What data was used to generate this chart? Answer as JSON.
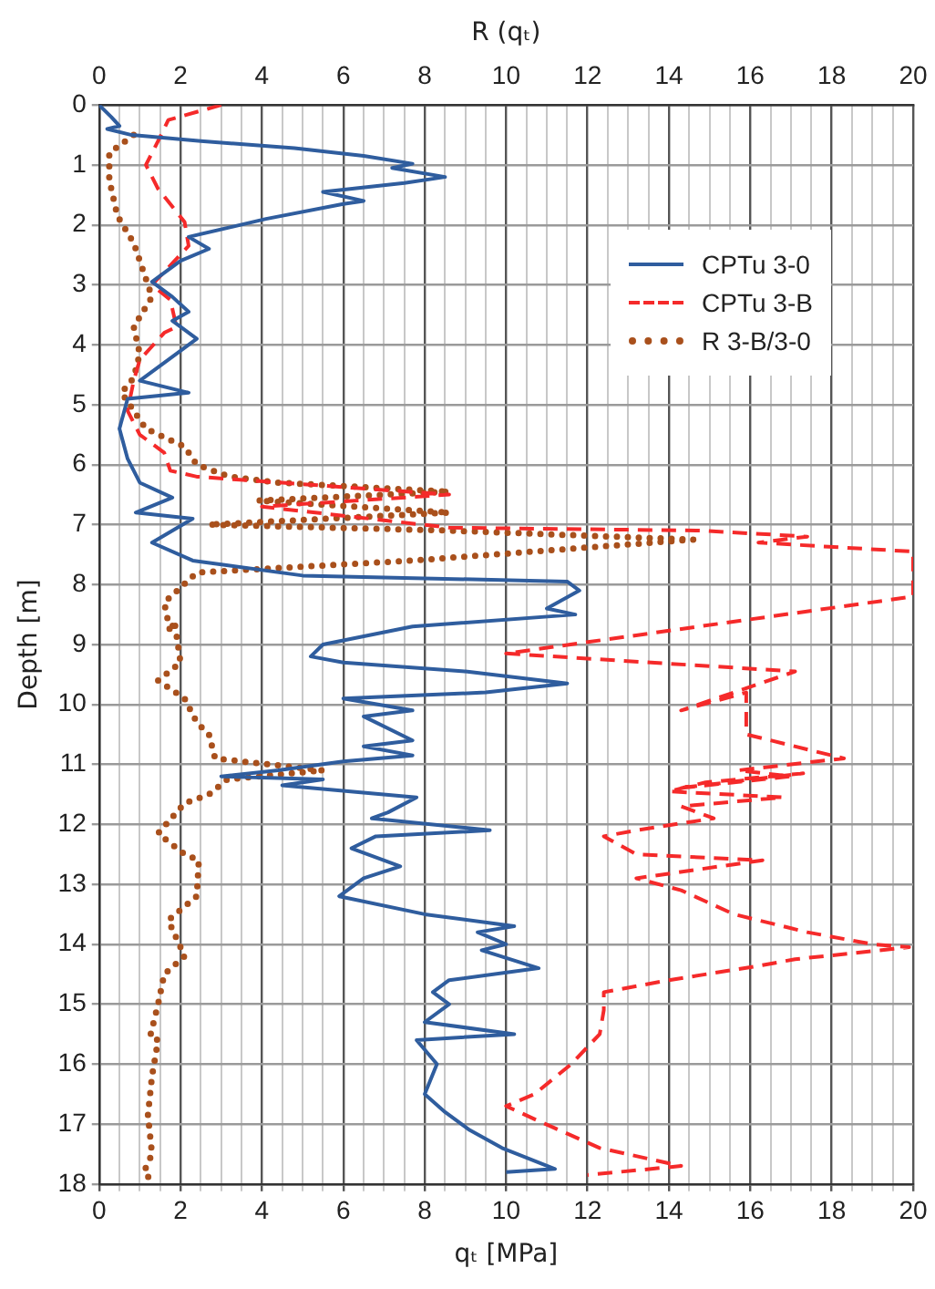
{
  "chart_data": {
    "type": "line",
    "xlabel": "qₜ [MPa]",
    "x2label": "R (qₜ)",
    "ylabel": "Depth [m]",
    "xlim": [
      0,
      20
    ],
    "xticks": [
      0,
      {
        "value": 0.5,
        "label": null
      },
      {
        "value": 1,
        "label": null
      },
      {
        "value": 1.5,
        "label": null
      },
      2,
      {
        "value": 2.5,
        "label": null
      },
      {
        "value": 3,
        "label": null
      },
      {
        "value": 3.5,
        "label": null
      },
      4,
      {
        "value": 4.5,
        "label": null
      },
      {
        "value": 5,
        "label": null
      },
      {
        "value": 5.5,
        "label": null
      },
      6,
      {
        "value": 6.5,
        "label": null
      },
      {
        "value": 7,
        "label": null
      },
      {
        "value": 7.5,
        "label": null
      },
      8,
      {
        "value": 8.5,
        "label": null
      },
      {
        "value": 9,
        "label": null
      },
      {
        "value": 9.5,
        "label": null
      },
      10,
      {
        "value": 10.5,
        "label": null
      },
      {
        "value": 11,
        "label": null
      },
      {
        "value": 11.5,
        "label": null
      },
      12,
      {
        "value": 12.5,
        "label": null
      },
      {
        "value": 13,
        "label": null
      },
      {
        "value": 13.5,
        "label": null
      },
      14,
      {
        "value": 14.5,
        "label": null
      },
      {
        "value": 15,
        "label": null
      },
      {
        "value": 15.5,
        "label": null
      },
      16,
      {
        "value": 16.5,
        "label": null
      },
      {
        "value": 17,
        "label": null
      },
      {
        "value": 17.5,
        "label": null
      },
      18,
      {
        "value": 18.5,
        "label": null
      },
      {
        "value": 19,
        "label": null
      },
      {
        "value": 19.5,
        "label": null
      },
      20
    ],
    "x2lim": [
      0,
      20
    ],
    "x2ticks": [
      0,
      2,
      4,
      6,
      8,
      10,
      12,
      14,
      16,
      18,
      20
    ],
    "ylim": [
      18,
      0
    ],
    "yticks": [
      0,
      1,
      2,
      3,
      4,
      5,
      6,
      7,
      8,
      9,
      10,
      11,
      12,
      13,
      14,
      15,
      16,
      17,
      18
    ],
    "grid": true,
    "legend": "top right",
    "series": [
      {
        "name": "CPTu 3-0",
        "color": "#2f5d9e",
        "line_style": "solid",
        "x": [
          0,
          0.3,
          0.5,
          0.2,
          0.8,
          2.5,
          4.8,
          6.5,
          7.7,
          7.2,
          8.5,
          7.5,
          5.5,
          6.5,
          6.0,
          4.1,
          2.2,
          2.7,
          2.0,
          1.3,
          1.8,
          2.2,
          1.8,
          2.4,
          1.8,
          1.0,
          2.2,
          0.7,
          0.5,
          0.7,
          1.0,
          1.8,
          0.9,
          2.3,
          1.3,
          2.3,
          5.0,
          11.5,
          11.8,
          11.0,
          11.7,
          7.7,
          5.5,
          5.2,
          6.0,
          9.0,
          11.5,
          9.5,
          6.0,
          7.7,
          6.5,
          7.7,
          6.5,
          7.7,
          6.0,
          4.4,
          3.0,
          5.5,
          4.5,
          7.8,
          7.1,
          6.7,
          9.6,
          6.8,
          6.2,
          7.4,
          6.5,
          5.9,
          8.0,
          10.2,
          9.3,
          10.0,
          9.4,
          10.8,
          8.6,
          8.2,
          8.6,
          8.0,
          10.2,
          7.8,
          8.3,
          8.0,
          8.5,
          9.1,
          9.9,
          11.2,
          10.0
        ],
        "values": [
          0,
          0.2,
          0.35,
          0.4,
          0.5,
          0.6,
          0.72,
          0.85,
          0.98,
          1.05,
          1.2,
          1.3,
          1.45,
          1.6,
          1.65,
          1.9,
          2.2,
          2.4,
          2.6,
          2.95,
          3.2,
          3.45,
          3.6,
          3.9,
          4.2,
          4.6,
          4.8,
          4.9,
          5.4,
          5.9,
          6.3,
          6.55,
          6.8,
          6.9,
          7.3,
          7.6,
          7.85,
          7.95,
          8.1,
          8.4,
          8.5,
          8.7,
          9.0,
          9.2,
          9.3,
          9.45,
          9.65,
          9.8,
          9.9,
          10.1,
          10.2,
          10.6,
          10.7,
          10.85,
          10.95,
          11.1,
          11.2,
          11.25,
          11.35,
          11.55,
          11.8,
          11.9,
          12.1,
          12.2,
          12.4,
          12.7,
          12.9,
          13.2,
          13.5,
          13.7,
          13.8,
          14.0,
          14.1,
          14.4,
          14.6,
          14.8,
          15.0,
          15.3,
          15.5,
          15.6,
          16.0,
          16.5,
          16.8,
          17.1,
          17.4,
          17.75,
          17.8
        ]
      },
      {
        "name": "CPTu 3-B",
        "color": "#f52a2a",
        "line_style": "dashed",
        "x": [
          3.0,
          1.7,
          1.45,
          1.15,
          1.45,
          2.1,
          2.2,
          1.3,
          1.75,
          1.9,
          1.6,
          1.0,
          0.85,
          0.7,
          1.0,
          1.6,
          1.75,
          2.4,
          8.6,
          4.0,
          8.6,
          14.8,
          17.4,
          16.2,
          20,
          20,
          20,
          10.0,
          17.1,
          14.3,
          15.9,
          15.9,
          18.3,
          15.7,
          17.0,
          14.2,
          17.3,
          14.9,
          14.0,
          16.8,
          14.3,
          15.1,
          13.2,
          12.4,
          13.2,
          16.3,
          13.2,
          14.3,
          15.6,
          17.4,
          19.0,
          19.9,
          17.1,
          16.3,
          14.0,
          12.4,
          12.4,
          12.3,
          11.6,
          10.7,
          10.0,
          10.8,
          12.3,
          14.3,
          12.0
        ],
        "values": [
          0,
          0.25,
          0.6,
          1.0,
          1.4,
          1.95,
          2.35,
          3.0,
          3.25,
          3.7,
          3.8,
          4.25,
          4.6,
          5.1,
          5.5,
          5.8,
          6.1,
          6.2,
          6.5,
          6.7,
          7.05,
          7.1,
          7.2,
          7.3,
          7.45,
          7.55,
          8.2,
          9.15,
          9.45,
          10.1,
          9.8,
          10.5,
          10.9,
          11.1,
          11.2,
          11.4,
          11.15,
          11.3,
          11.45,
          11.55,
          11.7,
          11.9,
          12.1,
          12.2,
          12.5,
          12.6,
          12.9,
          13.1,
          13.5,
          13.8,
          14.0,
          14.05,
          14.25,
          14.35,
          14.6,
          14.8,
          15.1,
          15.5,
          16.0,
          16.5,
          16.7,
          16.95,
          17.4,
          17.7,
          17.85
        ]
      },
      {
        "name": "R 3-B/3-0",
        "color": "#a9501c",
        "line_style": "dotted",
        "axis": "x2",
        "x": [
          0.85,
          0.25,
          0.25,
          0.45,
          0.85,
          1.0,
          1.3,
          0.85,
          1.0,
          0.85,
          0.55,
          1.15,
          2.1,
          2.4,
          3.2,
          4.4,
          8.6,
          3.9,
          8.6,
          2.7,
          8.6,
          14.6,
          7.7,
          2.4,
          1.6,
          1.75,
          1.85,
          2.0,
          1.45,
          2.1,
          2.4,
          2.7,
          2.85,
          5.5,
          3.15,
          2.7,
          2.1,
          1.45,
          2.1,
          2.45,
          2.4,
          1.7,
          2.1,
          1.6,
          1.45,
          1.25,
          1.45,
          1.3,
          1.2,
          1.3,
          1.1,
          1.3
        ],
        "values": [
          0.5,
          0.8,
          1.25,
          1.85,
          2.3,
          2.6,
          3.2,
          3.7,
          4.15,
          4.55,
          4.8,
          5.4,
          5.7,
          6.0,
          6.2,
          6.3,
          6.45,
          6.6,
          6.8,
          7.0,
          7.1,
          7.25,
          7.6,
          7.8,
          8.3,
          8.8,
          8.6,
          9.3,
          9.6,
          9.9,
          10.3,
          10.5,
          10.9,
          11.1,
          11.25,
          11.5,
          11.65,
          12.15,
          12.5,
          12.6,
          13.2,
          13.6,
          14.2,
          14.5,
          15.0,
          15.55,
          15.6,
          16.2,
          16.85,
          17.5,
          17.8,
          17.95
        ]
      }
    ]
  }
}
